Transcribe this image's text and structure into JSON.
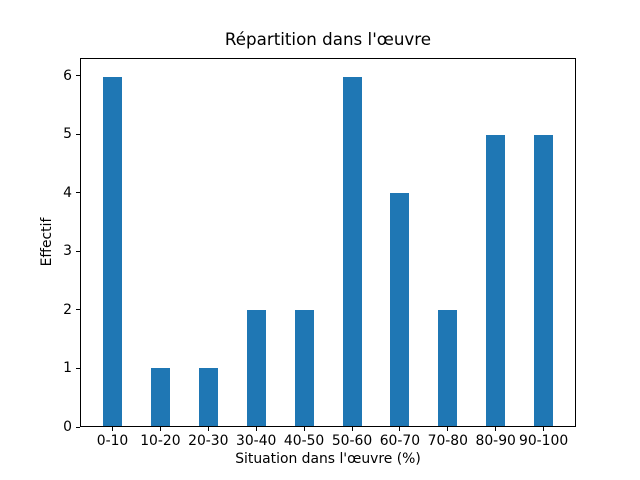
{
  "chart_data": {
    "type": "bar",
    "title": "Répartition dans l'œuvre",
    "xlabel": "Situation dans l'œuvre (%)",
    "ylabel": "Effectif",
    "categories": [
      "0-10",
      "10-20",
      "20-30",
      "30-40",
      "40-50",
      "50-60",
      "60-70",
      "70-80",
      "80-90",
      "90-100"
    ],
    "values": [
      6,
      1,
      1,
      2,
      2,
      6,
      4,
      2,
      5,
      5
    ],
    "yticks": [
      0,
      1,
      2,
      3,
      4,
      5,
      6
    ],
    "ylim": [
      0,
      6.3
    ],
    "bar_color": "#1f77b4",
    "axis_color": "#000000",
    "background_color": "#ffffff",
    "grid": false,
    "legend_position": "none"
  }
}
